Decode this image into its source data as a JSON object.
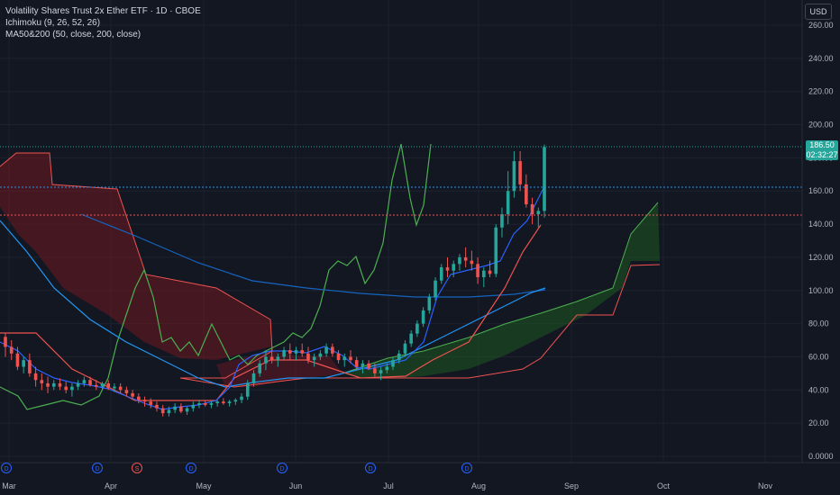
{
  "legend": {
    "title": "Volatility Shares Trust 2x Ether ETF · 1D · CBOE",
    "ichimoku": "Ichimoku (9, 26, 52, 26)",
    "ma": "MA50&200 (50, close, 200, close)"
  },
  "currency": "USD",
  "last_price": {
    "value": "186.50",
    "countdown": "02:32:27"
  },
  "colors": {
    "background": "#131722",
    "up": "#26a69a",
    "down": "#ef5350",
    "conversion_line": "#2962ff",
    "lagging_span": "#4caf50",
    "cloud_bull": "#1b5e20",
    "cloud_bear": "#801922",
    "ma50": "#2196f3",
    "ma200": "#1565c0"
  },
  "chart_data": {
    "type": "candlestick",
    "y_ticks": [
      "260.00",
      "240.00",
      "220.00",
      "200.00",
      "180.00",
      "160.00",
      "140.00",
      "120.00",
      "100.00",
      "80.00",
      "60.00",
      "40.00",
      "20.00",
      "0.0000"
    ],
    "ylim": [
      0,
      260
    ],
    "x_ticks": [
      "Mar",
      "Apr",
      "May",
      "Jun",
      "Jul",
      "Aug",
      "Sep",
      "Oct",
      "Nov"
    ],
    "event_markers": [
      "D",
      "D",
      "S",
      "D",
      "D",
      "D",
      "D"
    ],
    "reference_levels": [
      162,
      146
    ],
    "candles_ohlc": [
      [
        72,
        74,
        60,
        66
      ],
      [
        66,
        70,
        58,
        62
      ],
      [
        62,
        66,
        52,
        54
      ],
      [
        54,
        60,
        50,
        58
      ],
      [
        58,
        62,
        48,
        50
      ],
      [
        50,
        54,
        42,
        46
      ],
      [
        46,
        50,
        40,
        44
      ],
      [
        44,
        48,
        38,
        42
      ],
      [
        42,
        46,
        40,
        44
      ],
      [
        44,
        47,
        40,
        42
      ],
      [
        42,
        45,
        38,
        40
      ],
      [
        40,
        44,
        36,
        42
      ],
      [
        42,
        46,
        40,
        44
      ],
      [
        44,
        48,
        42,
        46
      ],
      [
        46,
        48,
        42,
        43
      ],
      [
        43,
        46,
        40,
        42
      ],
      [
        42,
        45,
        40,
        44
      ],
      [
        44,
        46,
        40,
        41
      ],
      [
        41,
        44,
        39,
        42
      ],
      [
        42,
        44,
        38,
        40
      ],
      [
        40,
        42,
        36,
        38
      ],
      [
        38,
        40,
        34,
        36
      ],
      [
        36,
        38,
        32,
        34
      ],
      [
        34,
        36,
        30,
        33
      ],
      [
        33,
        35,
        29,
        31
      ],
      [
        31,
        33,
        27,
        29
      ],
      [
        29,
        31,
        24,
        26
      ],
      [
        26,
        30,
        24,
        28
      ],
      [
        28,
        32,
        26,
        30
      ],
      [
        30,
        32,
        26,
        27
      ],
      [
        27,
        30,
        25,
        29
      ],
      [
        29,
        33,
        27,
        31
      ],
      [
        31,
        34,
        29,
        32
      ],
      [
        32,
        34,
        30,
        31
      ],
      [
        31,
        33,
        29,
        32
      ],
      [
        32,
        34,
        30,
        33
      ],
      [
        33,
        35,
        31,
        32
      ],
      [
        32,
        34,
        30,
        33
      ],
      [
        33,
        35,
        31,
        34
      ],
      [
        34,
        38,
        32,
        36
      ],
      [
        36,
        46,
        34,
        44
      ],
      [
        44,
        52,
        42,
        50
      ],
      [
        50,
        58,
        48,
        56
      ],
      [
        56,
        64,
        52,
        60
      ],
      [
        60,
        66,
        56,
        58
      ],
      [
        58,
        62,
        54,
        60
      ],
      [
        60,
        66,
        58,
        64
      ],
      [
        64,
        68,
        58,
        62
      ],
      [
        62,
        66,
        58,
        64
      ],
      [
        64,
        68,
        60,
        62
      ],
      [
        62,
        66,
        56,
        58
      ],
      [
        58,
        62,
        54,
        60
      ],
      [
        60,
        64,
        58,
        62
      ],
      [
        62,
        68,
        60,
        66
      ],
      [
        66,
        68,
        60,
        62
      ],
      [
        62,
        64,
        56,
        58
      ],
      [
        58,
        62,
        54,
        60
      ],
      [
        60,
        64,
        56,
        58
      ],
      [
        58,
        60,
        52,
        54
      ],
      [
        54,
        58,
        50,
        56
      ],
      [
        56,
        58,
        52,
        53
      ],
      [
        53,
        56,
        48,
        50
      ],
      [
        50,
        54,
        46,
        52
      ],
      [
        52,
        56,
        50,
        54
      ],
      [
        54,
        60,
        52,
        58
      ],
      [
        58,
        64,
        56,
        62
      ],
      [
        62,
        70,
        60,
        68
      ],
      [
        68,
        76,
        66,
        74
      ],
      [
        74,
        82,
        72,
        80
      ],
      [
        80,
        90,
        78,
        88
      ],
      [
        88,
        98,
        86,
        96
      ],
      [
        96,
        108,
        94,
        106
      ],
      [
        106,
        116,
        104,
        114
      ],
      [
        114,
        120,
        108,
        112
      ],
      [
        112,
        118,
        108,
        116
      ],
      [
        116,
        122,
        112,
        120
      ],
      [
        120,
        126,
        114,
        118
      ],
      [
        118,
        124,
        112,
        116
      ],
      [
        116,
        120,
        104,
        108
      ],
      [
        108,
        114,
        102,
        112
      ],
      [
        112,
        118,
        108,
        110
      ],
      [
        110,
        140,
        108,
        138
      ],
      [
        138,
        150,
        132,
        146
      ],
      [
        146,
        172,
        140,
        160
      ],
      [
        160,
        184,
        156,
        178
      ],
      [
        178,
        184,
        160,
        164
      ],
      [
        164,
        170,
        150,
        152
      ],
      [
        152,
        156,
        140,
        146
      ],
      [
        146,
        150,
        138,
        148
      ],
      [
        148,
        188,
        144,
        186.5
      ]
    ]
  }
}
